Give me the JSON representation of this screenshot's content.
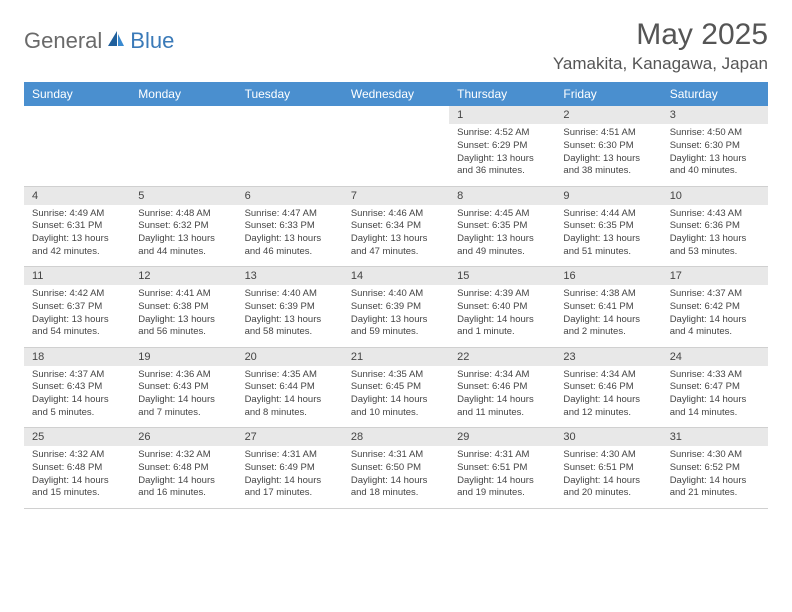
{
  "brand": {
    "part1": "General",
    "part2": "Blue"
  },
  "title": "May 2025",
  "location": "Yamakita, Kanagawa, Japan",
  "colors": {
    "header_bg": "#4a8fcf",
    "header_text": "#ffffff",
    "daynum_bg": "#e8e8e8",
    "text": "#444444",
    "border": "#d0d0d0"
  },
  "weekdays": [
    "Sunday",
    "Monday",
    "Tuesday",
    "Wednesday",
    "Thursday",
    "Friday",
    "Saturday"
  ],
  "weeks": [
    [
      null,
      null,
      null,
      null,
      {
        "n": "1",
        "sr": "4:52 AM",
        "ss": "6:29 PM",
        "dl": "13 hours and 36 minutes."
      },
      {
        "n": "2",
        "sr": "4:51 AM",
        "ss": "6:30 PM",
        "dl": "13 hours and 38 minutes."
      },
      {
        "n": "3",
        "sr": "4:50 AM",
        "ss": "6:30 PM",
        "dl": "13 hours and 40 minutes."
      }
    ],
    [
      {
        "n": "4",
        "sr": "4:49 AM",
        "ss": "6:31 PM",
        "dl": "13 hours and 42 minutes."
      },
      {
        "n": "5",
        "sr": "4:48 AM",
        "ss": "6:32 PM",
        "dl": "13 hours and 44 minutes."
      },
      {
        "n": "6",
        "sr": "4:47 AM",
        "ss": "6:33 PM",
        "dl": "13 hours and 46 minutes."
      },
      {
        "n": "7",
        "sr": "4:46 AM",
        "ss": "6:34 PM",
        "dl": "13 hours and 47 minutes."
      },
      {
        "n": "8",
        "sr": "4:45 AM",
        "ss": "6:35 PM",
        "dl": "13 hours and 49 minutes."
      },
      {
        "n": "9",
        "sr": "4:44 AM",
        "ss": "6:35 PM",
        "dl": "13 hours and 51 minutes."
      },
      {
        "n": "10",
        "sr": "4:43 AM",
        "ss": "6:36 PM",
        "dl": "13 hours and 53 minutes."
      }
    ],
    [
      {
        "n": "11",
        "sr": "4:42 AM",
        "ss": "6:37 PM",
        "dl": "13 hours and 54 minutes."
      },
      {
        "n": "12",
        "sr": "4:41 AM",
        "ss": "6:38 PM",
        "dl": "13 hours and 56 minutes."
      },
      {
        "n": "13",
        "sr": "4:40 AM",
        "ss": "6:39 PM",
        "dl": "13 hours and 58 minutes."
      },
      {
        "n": "14",
        "sr": "4:40 AM",
        "ss": "6:39 PM",
        "dl": "13 hours and 59 minutes."
      },
      {
        "n": "15",
        "sr": "4:39 AM",
        "ss": "6:40 PM",
        "dl": "14 hours and 1 minute."
      },
      {
        "n": "16",
        "sr": "4:38 AM",
        "ss": "6:41 PM",
        "dl": "14 hours and 2 minutes."
      },
      {
        "n": "17",
        "sr": "4:37 AM",
        "ss": "6:42 PM",
        "dl": "14 hours and 4 minutes."
      }
    ],
    [
      {
        "n": "18",
        "sr": "4:37 AM",
        "ss": "6:43 PM",
        "dl": "14 hours and 5 minutes."
      },
      {
        "n": "19",
        "sr": "4:36 AM",
        "ss": "6:43 PM",
        "dl": "14 hours and 7 minutes."
      },
      {
        "n": "20",
        "sr": "4:35 AM",
        "ss": "6:44 PM",
        "dl": "14 hours and 8 minutes."
      },
      {
        "n": "21",
        "sr": "4:35 AM",
        "ss": "6:45 PM",
        "dl": "14 hours and 10 minutes."
      },
      {
        "n": "22",
        "sr": "4:34 AM",
        "ss": "6:46 PM",
        "dl": "14 hours and 11 minutes."
      },
      {
        "n": "23",
        "sr": "4:34 AM",
        "ss": "6:46 PM",
        "dl": "14 hours and 12 minutes."
      },
      {
        "n": "24",
        "sr": "4:33 AM",
        "ss": "6:47 PM",
        "dl": "14 hours and 14 minutes."
      }
    ],
    [
      {
        "n": "25",
        "sr": "4:32 AM",
        "ss": "6:48 PM",
        "dl": "14 hours and 15 minutes."
      },
      {
        "n": "26",
        "sr": "4:32 AM",
        "ss": "6:48 PM",
        "dl": "14 hours and 16 minutes."
      },
      {
        "n": "27",
        "sr": "4:31 AM",
        "ss": "6:49 PM",
        "dl": "14 hours and 17 minutes."
      },
      {
        "n": "28",
        "sr": "4:31 AM",
        "ss": "6:50 PM",
        "dl": "14 hours and 18 minutes."
      },
      {
        "n": "29",
        "sr": "4:31 AM",
        "ss": "6:51 PM",
        "dl": "14 hours and 19 minutes."
      },
      {
        "n": "30",
        "sr": "4:30 AM",
        "ss": "6:51 PM",
        "dl": "14 hours and 20 minutes."
      },
      {
        "n": "31",
        "sr": "4:30 AM",
        "ss": "6:52 PM",
        "dl": "14 hours and 21 minutes."
      }
    ]
  ],
  "labels": {
    "sunrise": "Sunrise: ",
    "sunset": "Sunset: ",
    "daylight": "Daylight: "
  }
}
